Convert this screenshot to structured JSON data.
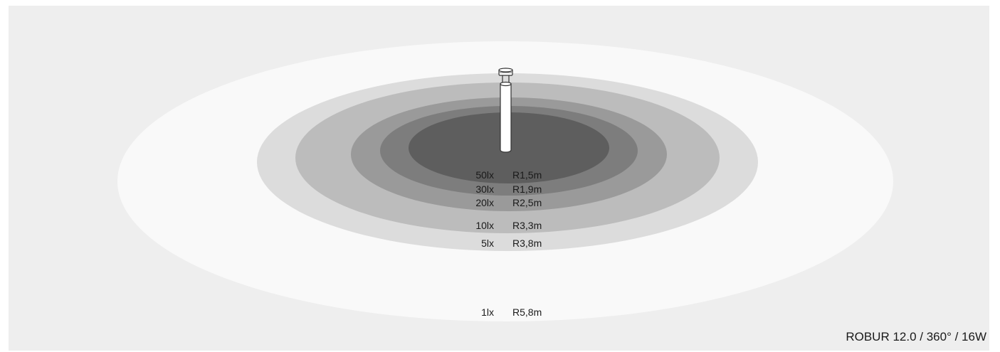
{
  "product": {
    "caption": "ROBUR 12.0 / 360° / 16W"
  },
  "zones": [
    {
      "lux": "1lx",
      "radius": "R5,8m",
      "color": "#f9f9f9"
    },
    {
      "lux": "5lx",
      "radius": "R3,8m",
      "color": "#dcdcdc"
    },
    {
      "lux": "10lx",
      "radius": "R3,3m",
      "color": "#bcbcbc"
    },
    {
      "lux": "20lx",
      "radius": "R2,5m",
      "color": "#9a9a9a"
    },
    {
      "lux": "30lx",
      "radius": "R1,9m",
      "color": "#7d7d7d"
    },
    {
      "lux": "50lx",
      "radius": "R1,5m",
      "color": "#5e5e5e"
    }
  ],
  "colors": {
    "background": "#eeeeee",
    "pole_fill": "#ffffff",
    "pole_stroke": "#333333"
  },
  "icons": {
    "luminaire": "bollard-light-icon"
  }
}
